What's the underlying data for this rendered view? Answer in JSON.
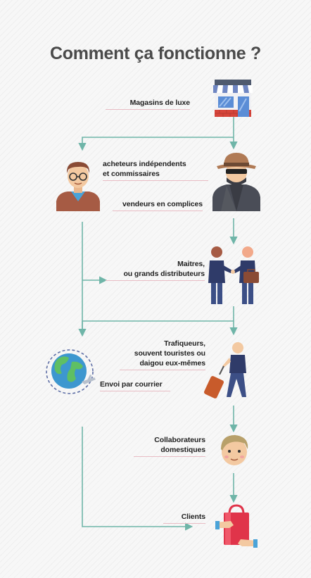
{
  "title": "Comment ça fonctionne ?",
  "nodes": {
    "luxury_stores": "Magasins de luxe",
    "independent_buyers": [
      "acheteurs indépendents",
      "et commissaires"
    ],
    "accomplice_sellers": "vendeurs en complices",
    "masters": [
      "Maitres,",
      "ou grands distributeurs"
    ],
    "traffickers": [
      "Trafiqueurs,",
      "souvent touristes ou",
      "daigou eux-mêmes"
    ],
    "mail_shipping": "Envoi par courrier",
    "domestic_collaborators": [
      "Collaborateurs",
      "domestiques"
    ],
    "clients": "Clients"
  },
  "icons": {
    "store": "store-icon",
    "buyer": "buyer-man-icon",
    "spy": "spy-seller-icon",
    "handshake": "handshake-distributors-icon",
    "traveler": "traveler-suitcase-icon",
    "globe": "globe-plane-icon",
    "collaborator": "collaborator-man-icon",
    "shopping": "shopping-bag-icon"
  },
  "colors": {
    "arrow": "#6fb5a8",
    "title": "#4a4a4a",
    "underline": "#e8bcc4"
  }
}
